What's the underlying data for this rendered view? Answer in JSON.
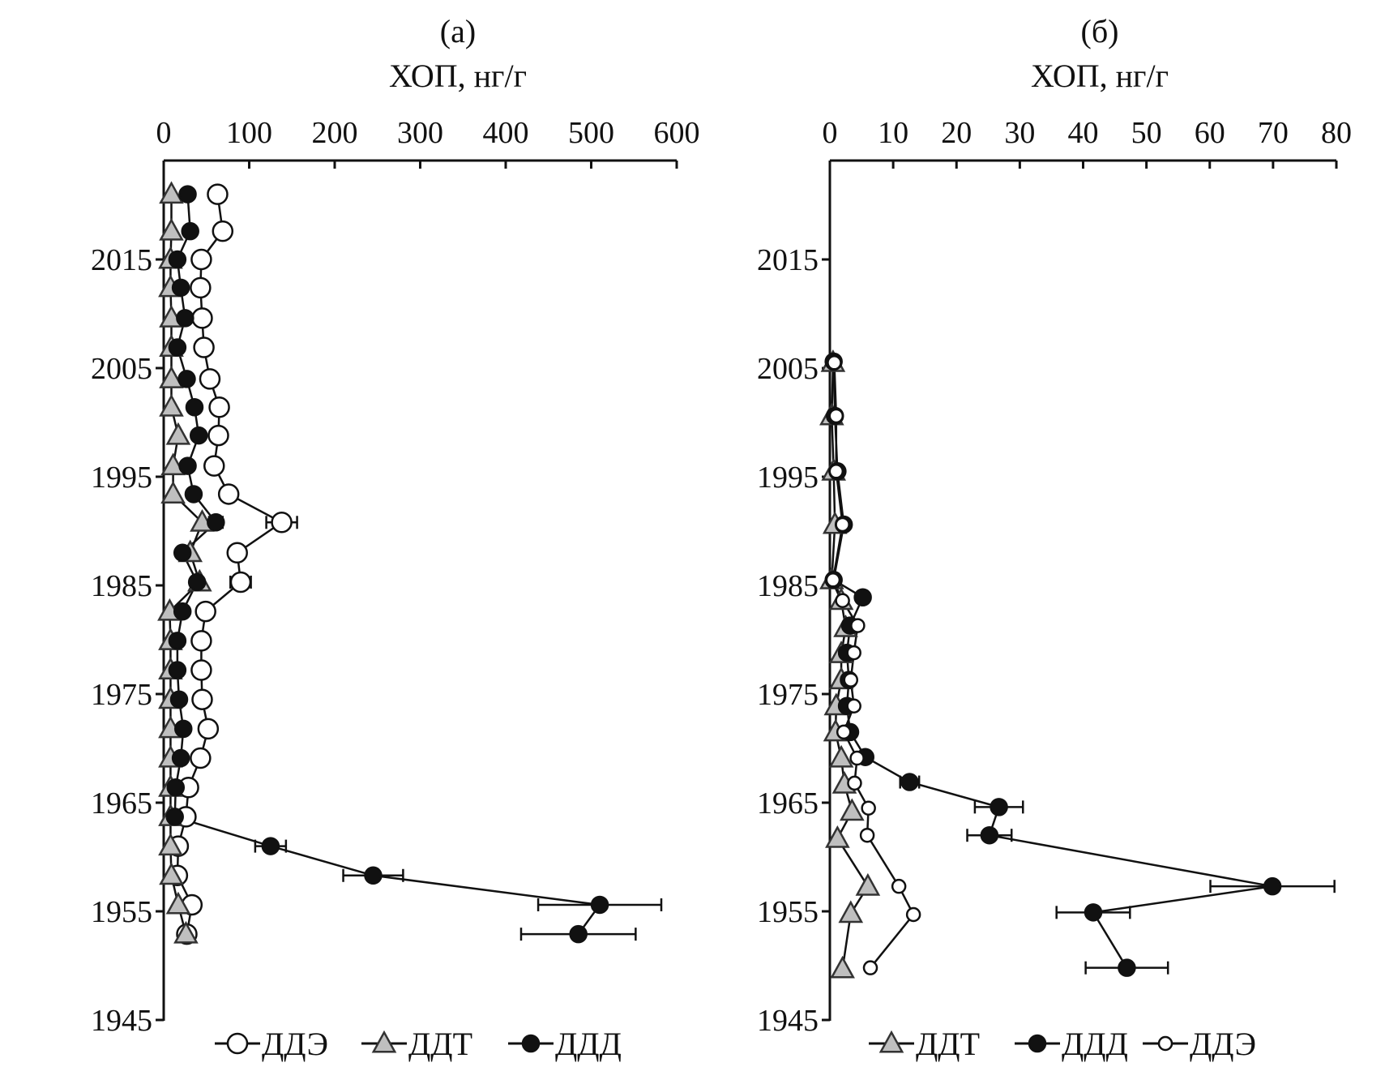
{
  "chart_data": [
    {
      "type": "scatter",
      "panel_label": "(а)",
      "xlabel": "ХОП, нг/г",
      "xlim": [
        0,
        600
      ],
      "xticks": [
        "0",
        "100",
        "200",
        "300",
        "400",
        "500",
        "600"
      ],
      "ylim": [
        1945,
        2024
      ],
      "yticks": [
        "2015",
        "2005",
        "1995",
        "1985",
        "1975",
        "1965",
        "1955",
        "1945"
      ],
      "x_axis_position": "top",
      "y_axis_reversed": true,
      "legend_position": "bottom",
      "series": [
        {
          "name": "ДДЭ",
          "marker": "open-circle",
          "color": "#ffffff",
          "points": [
            {
              "year": 2021.0,
              "value": 63
            },
            {
              "year": 2017.6,
              "value": 69
            },
            {
              "year": 2015.0,
              "value": 44
            },
            {
              "year": 2012.4,
              "value": 43
            },
            {
              "year": 2009.6,
              "value": 45
            },
            {
              "year": 2006.9,
              "value": 47
            },
            {
              "year": 2004.0,
              "value": 54
            },
            {
              "year": 2001.4,
              "value": 65
            },
            {
              "year": 1998.8,
              "value": 64
            },
            {
              "year": 1996.0,
              "value": 59
            },
            {
              "year": 1993.4,
              "value": 76
            },
            {
              "year": 1990.8,
              "value": 138,
              "error": 18
            },
            {
              "year": 1988.0,
              "value": 86
            },
            {
              "year": 1985.3,
              "value": 90,
              "error": 12
            },
            {
              "year": 1982.6,
              "value": 49
            },
            {
              "year": 1979.9,
              "value": 44
            },
            {
              "year": 1977.2,
              "value": 44
            },
            {
              "year": 1974.5,
              "value": 45
            },
            {
              "year": 1971.8,
              "value": 52
            },
            {
              "year": 1969.1,
              "value": 43
            },
            {
              "year": 1966.4,
              "value": 29
            },
            {
              "year": 1963.7,
              "value": 26
            },
            {
              "year": 1961.0,
              "value": 17
            },
            {
              "year": 1958.3,
              "value": 16
            },
            {
              "year": 1955.6,
              "value": 33
            },
            {
              "year": 1952.9,
              "value": 27
            }
          ]
        },
        {
          "name": "ДДТ",
          "marker": "triangle",
          "color": "#bfbfbf",
          "points": [
            {
              "year": 2021.0,
              "value": 9
            },
            {
              "year": 2017.6,
              "value": 9
            },
            {
              "year": 2015.0,
              "value": 8
            },
            {
              "year": 2012.4,
              "value": 8
            },
            {
              "year": 2009.6,
              "value": 9
            },
            {
              "year": 2006.9,
              "value": 9
            },
            {
              "year": 2004.0,
              "value": 9
            },
            {
              "year": 2001.4,
              "value": 9
            },
            {
              "year": 1998.8,
              "value": 17
            },
            {
              "year": 1996.0,
              "value": 11
            },
            {
              "year": 1993.4,
              "value": 11
            },
            {
              "year": 1990.8,
              "value": 45
            },
            {
              "year": 1988.0,
              "value": 31
            },
            {
              "year": 1985.3,
              "value": 42
            },
            {
              "year": 1982.6,
              "value": 7
            },
            {
              "year": 1979.9,
              "value": 8
            },
            {
              "year": 1977.2,
              "value": 8
            },
            {
              "year": 1974.5,
              "value": 8
            },
            {
              "year": 1971.8,
              "value": 8
            },
            {
              "year": 1969.1,
              "value": 8
            },
            {
              "year": 1966.4,
              "value": 8
            },
            {
              "year": 1963.7,
              "value": 8
            },
            {
              "year": 1961.0,
              "value": 8
            },
            {
              "year": 1958.3,
              "value": 9
            },
            {
              "year": 1955.6,
              "value": 17
            },
            {
              "year": 1952.9,
              "value": 26
            }
          ]
        },
        {
          "name": "ДДД",
          "marker": "filled-circle",
          "color": "#111111",
          "points": [
            {
              "year": 2021.0,
              "value": 28
            },
            {
              "year": 2017.6,
              "value": 31
            },
            {
              "year": 2015.0,
              "value": 16
            },
            {
              "year": 2012.4,
              "value": 20
            },
            {
              "year": 2009.6,
              "value": 25
            },
            {
              "year": 2006.9,
              "value": 16
            },
            {
              "year": 2004.0,
              "value": 27
            },
            {
              "year": 2001.4,
              "value": 36
            },
            {
              "year": 1998.8,
              "value": 41
            },
            {
              "year": 1996.0,
              "value": 28
            },
            {
              "year": 1993.4,
              "value": 35
            },
            {
              "year": 1990.8,
              "value": 61,
              "error": 8
            },
            {
              "year": 1988.0,
              "value": 22
            },
            {
              "year": 1985.3,
              "value": 39
            },
            {
              "year": 1982.6,
              "value": 22
            },
            {
              "year": 1979.9,
              "value": 16
            },
            {
              "year": 1977.2,
              "value": 16
            },
            {
              "year": 1974.5,
              "value": 18
            },
            {
              "year": 1971.8,
              "value": 23
            },
            {
              "year": 1969.1,
              "value": 20
            },
            {
              "year": 1966.4,
              "value": 14
            },
            {
              "year": 1963.7,
              "value": 13
            },
            {
              "year": 1961.0,
              "value": 125,
              "error": 18
            },
            {
              "year": 1958.3,
              "value": 245,
              "error": 35
            },
            {
              "year": 1955.6,
              "value": 510,
              "error": 72
            },
            {
              "year": 1952.9,
              "value": 485,
              "error": 67
            }
          ]
        }
      ],
      "legend": [
        {
          "name": "ДДЭ",
          "marker": "open-circle"
        },
        {
          "name": "ДДТ",
          "marker": "triangle"
        },
        {
          "name": "ДДД",
          "marker": "filled-circle"
        }
      ]
    },
    {
      "type": "scatter",
      "panel_label": "(б)",
      "xlabel": "ХОП, нг/г",
      "xlim": [
        0,
        80
      ],
      "xticks": [
        "0",
        "10",
        "20",
        "30",
        "40",
        "50",
        "60",
        "70",
        "80"
      ],
      "ylim": [
        1945,
        2024
      ],
      "yticks": [
        "2015",
        "2005",
        "1995",
        "1985",
        "1975",
        "1965",
        "1955",
        "1945"
      ],
      "x_axis_position": "top",
      "y_axis_reversed": true,
      "legend_position": "bottom",
      "series": [
        {
          "name": "ДДТ",
          "marker": "triangle",
          "color": "#bfbfbf",
          "points": [
            {
              "year": 2005.5,
              "value": 0.5
            },
            {
              "year": 2000.6,
              "value": 0.3
            },
            {
              "year": 1995.5,
              "value": 0.6
            },
            {
              "year": 1990.6,
              "value": 0.8
            },
            {
              "year": 1985.5,
              "value": 0.3
            },
            {
              "year": 1983.6,
              "value": 1.8
            },
            {
              "year": 1981.1,
              "value": 2.5
            },
            {
              "year": 1978.7,
              "value": 1.8
            },
            {
              "year": 1976.3,
              "value": 1.8
            },
            {
              "year": 1973.9,
              "value": 1.0
            },
            {
              "year": 1971.5,
              "value": 0.9
            },
            {
              "year": 1969.1,
              "value": 1.8
            },
            {
              "year": 1966.7,
              "value": 2.3
            },
            {
              "year": 1964.2,
              "value": 3.5
            },
            {
              "year": 1961.7,
              "value": 1.2
            },
            {
              "year": 1957.3,
              "value": 6.0
            },
            {
              "year": 1954.8,
              "value": 3.3
            },
            {
              "year": 1949.7,
              "value": 2.0
            }
          ]
        },
        {
          "name": "ДДД",
          "marker": "filled-circle",
          "color": "#111111",
          "points": [
            {
              "year": 2005.6,
              "value": 0.6
            },
            {
              "year": 2000.6,
              "value": 0.8
            },
            {
              "year": 1995.5,
              "value": 1.2
            },
            {
              "year": 1990.6,
              "value": 2.2
            },
            {
              "year": 1985.5,
              "value": 0.6
            },
            {
              "year": 1983.9,
              "value": 5.2
            },
            {
              "year": 1981.3,
              "value": 3.2
            },
            {
              "year": 1978.8,
              "value": 2.7
            },
            {
              "year": 1976.3,
              "value": 3.0
            },
            {
              "year": 1973.9,
              "value": 2.7
            },
            {
              "year": 1971.5,
              "value": 3.2
            },
            {
              "year": 1969.2,
              "value": 5.6
            },
            {
              "year": 1966.9,
              "value": 12.6,
              "error": 1.5
            },
            {
              "year": 1964.6,
              "value": 26.7,
              "error": 3.8
            },
            {
              "year": 1962.0,
              "value": 25.2,
              "error": 3.5
            },
            {
              "year": 1957.3,
              "value": 69.9,
              "error": 9.8
            },
            {
              "year": 1954.9,
              "value": 41.6,
              "error": 5.8
            },
            {
              "year": 1949.8,
              "value": 46.9,
              "error": 6.5
            }
          ]
        },
        {
          "name": "ДДЭ",
          "marker": "small-open-circle",
          "color": "#ffffff",
          "points": [
            {
              "year": 2005.5,
              "value": 0.7
            },
            {
              "year": 2000.6,
              "value": 1.0
            },
            {
              "year": 1995.5,
              "value": 1.0
            },
            {
              "year": 1990.6,
              "value": 2.0
            },
            {
              "year": 1985.5,
              "value": 0.5
            },
            {
              "year": 1983.6,
              "value": 2.0
            },
            {
              "year": 1981.3,
              "value": 4.4
            },
            {
              "year": 1978.8,
              "value": 3.8
            },
            {
              "year": 1976.3,
              "value": 3.3
            },
            {
              "year": 1973.9,
              "value": 3.8
            },
            {
              "year": 1971.5,
              "value": 2.2
            },
            {
              "year": 1969.1,
              "value": 4.3
            },
            {
              "year": 1966.8,
              "value": 3.9
            },
            {
              "year": 1964.5,
              "value": 6.1
            },
            {
              "year": 1962.0,
              "value": 5.9
            },
            {
              "year": 1957.3,
              "value": 10.9
            },
            {
              "year": 1954.7,
              "value": 13.2
            },
            {
              "year": 1949.8,
              "value": 6.4
            }
          ]
        }
      ],
      "legend": [
        {
          "name": "ДДТ",
          "marker": "triangle"
        },
        {
          "name": "ДДД",
          "marker": "filled-circle"
        },
        {
          "name": "ДДЭ",
          "marker": "small-open-circle"
        }
      ]
    }
  ]
}
